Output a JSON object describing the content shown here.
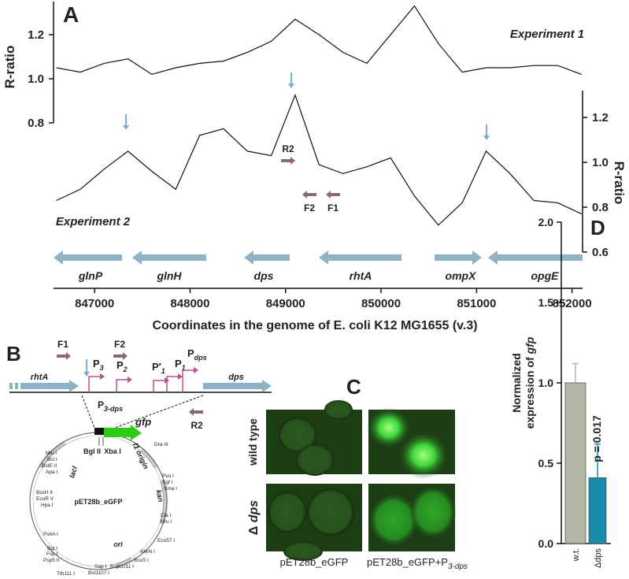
{
  "chart_data": [
    {
      "type": "line",
      "panel_label": "A",
      "x": [
        846600,
        846850,
        847100,
        847350,
        847600,
        847850,
        848100,
        848350,
        848600,
        848850,
        849100,
        849350,
        849600,
        849850,
        850100,
        850350,
        850600,
        850850,
        851100,
        851350,
        851600,
        851850,
        852100
      ],
      "xlim": [
        846570,
        852110
      ],
      "xticks": [
        847000,
        848000,
        849000,
        850000,
        851000,
        852000
      ],
      "xlabel": "Coordinates in the genome of E. coli K12 MG1655 (v.3)",
      "ylabel": "R-ratio",
      "ylim": [
        0.8,
        1.35
      ],
      "yticks": [
        0.8,
        {
          "value": 1,
          "label": "1.0"
        },
        1.2
      ],
      "y2label": "R-ratio",
      "y2lim": [
        0.6,
        1.32
      ],
      "y2ticks": [
        0.6,
        0.8,
        {
          "value": 1,
          "label": "1.0"
        },
        1.2
      ],
      "series": [
        {
          "name": "Experiment 1",
          "color": "#111111",
          "values": [
            1.05,
            1.03,
            1.07,
            1.09,
            1.02,
            1.05,
            1.07,
            1.08,
            1.12,
            1.17,
            1.27,
            1.2,
            1.12,
            1.07,
            1.2,
            1.33,
            1.16,
            1.03,
            1.05,
            1.05,
            1.06,
            1.06,
            1.02
          ]
        },
        {
          "name": "Experiment 2",
          "color": "#111111",
          "axis": "y2",
          "values": [
            0.83,
            0.88,
            0.97,
            1.05,
            0.96,
            0.88,
            1.12,
            1.15,
            1.05,
            1.03,
            1.3,
            0.99,
            0.95,
            0.98,
            1.02,
            0.85,
            0.72,
            0.82,
            1.05,
            0.95,
            0.83,
            0.82,
            0.77
          ]
        }
      ],
      "primers": [
        "R2",
        "F2",
        "F1"
      ],
      "genes": [
        {
          "name": "glnP",
          "color": "#222222"
        },
        {
          "name": "glnH",
          "color": "#222222"
        },
        {
          "name": "dps",
          "color": "#c0141c"
        },
        {
          "name": "rhtA",
          "color": "#222222"
        },
        {
          "name": "ompX",
          "color": "#222222"
        },
        {
          "name": "opgE",
          "color": "#222222"
        }
      ]
    },
    {
      "type": "bar",
      "panel_label": "D",
      "categories": [
        "w.t.",
        "Δdps"
      ],
      "values": [
        1.0,
        0.41
      ],
      "errors": [
        0.12,
        0.21
      ],
      "colors": [
        "#b5b5a6",
        "#1a8bab"
      ],
      "ylim": [
        0,
        2
      ],
      "yticks": [
        {
          "value": 0,
          "label": "0.0"
        },
        {
          "value": 0.5,
          "label": "0.5"
        },
        {
          "value": 1,
          "label": "1.0"
        },
        {
          "value": 1.5,
          "label": "1.5"
        },
        {
          "value": 2,
          "label": "2.0"
        }
      ],
      "ylabel": [
        "Normalized",
        "expression of ",
        "gfp"
      ],
      "annotation": "p = 0.017"
    }
  ],
  "panel_b": {
    "panel_label": "B",
    "genes": [
      "rhtA",
      "dps"
    ],
    "primers": [
      "F1",
      "F2",
      "R2"
    ],
    "promoters": [
      {
        "main": "P",
        "sub": "3"
      },
      {
        "main": "P",
        "sub": "2"
      },
      {
        "main": "P′",
        "sub": "1"
      },
      {
        "main": "P",
        "sub": "1"
      },
      {
        "main": "P",
        "sub": "dps"
      }
    ],
    "region": {
      "main": "P",
      "sub": "3-dps"
    },
    "plasmid": "pET28b_eGFP",
    "insert_gene": "gfp",
    "cloning_sites": [
      "Bgl II",
      "Xba I"
    ],
    "features": [
      "lacI",
      "f1 origin",
      "kan",
      "ori"
    ],
    "enzymes": [
      "Mlu I",
      "Bcl I",
      "BstE II",
      "Apa I",
      "BssH II",
      "EcoR V",
      "Hpa I",
      "PshA I",
      "Bgl I",
      "Fsp I",
      "Psp5 II",
      "Tth111 I",
      "Sap I",
      "Bst1107 I",
      "BspLU11 I",
      "BssS I",
      "AlwN I",
      "Eco57 I",
      "Cla I",
      "Nru I",
      "Pvu I",
      "Sgf I",
      "Sma I",
      "Dra III"
    ]
  },
  "panel_c": {
    "panel_label": "C",
    "rows": [
      {
        "main": "wild type"
      },
      {
        "main": "Δ ",
        "italic": "dps"
      }
    ],
    "columns": [
      {
        "main": "pET28b_eGFP"
      },
      {
        "main": "pET28b_eGFP+P",
        "sub": "3-dps"
      }
    ]
  }
}
